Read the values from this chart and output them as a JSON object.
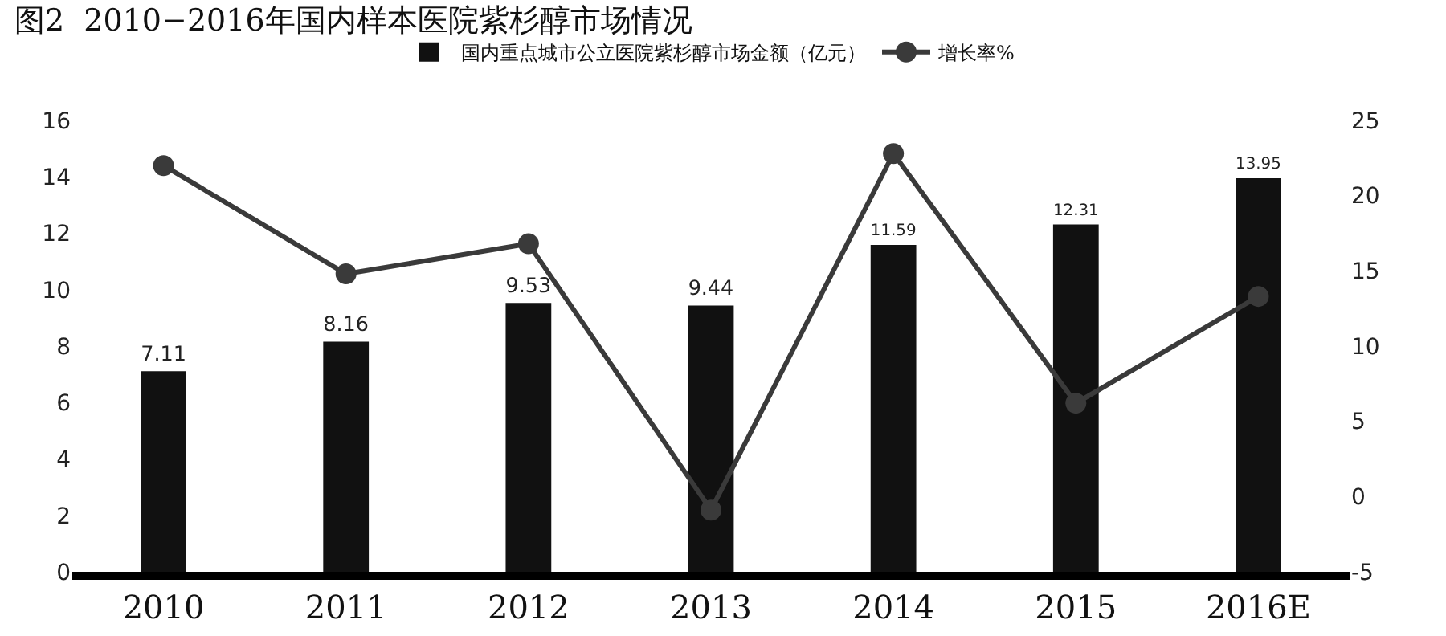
{
  "chart_data": {
    "type": "bar",
    "title": "图2  2010−2016年国内样本医院紫杉醇市场情况",
    "categories": [
      "2010",
      "2011",
      "2012",
      "2013",
      "2014",
      "2015",
      "2016E"
    ],
    "series": [
      {
        "name": "国内重点城市公立医院紫杉醇市场金额（亿元）",
        "color": "#111111",
        "values": [
          7.11,
          8.16,
          9.53,
          9.44,
          11.59,
          12.31,
          13.95
        ],
        "value_labels": [
          "7.11",
          "8.16",
          "9.53",
          "9.44",
          "11.59",
          "12.31",
          "13.95"
        ]
      },
      {
        "name": "增长率%",
        "type": "line",
        "axis": "y2",
        "color": "#3a3a3a",
        "marker": "circle",
        "values": [
          22,
          14.8,
          16.8,
          -0.9,
          22.8,
          6.2,
          13.3
        ]
      }
    ],
    "ylim": [
      0,
      16
    ],
    "yticks": [
      0,
      2,
      4,
      6,
      8,
      10,
      12,
      14,
      16
    ],
    "y2lim": [
      -5,
      25
    ],
    "y2ticks": [
      -5,
      0,
      5,
      10,
      15,
      20,
      25
    ],
    "grid": false,
    "legend": "top"
  }
}
